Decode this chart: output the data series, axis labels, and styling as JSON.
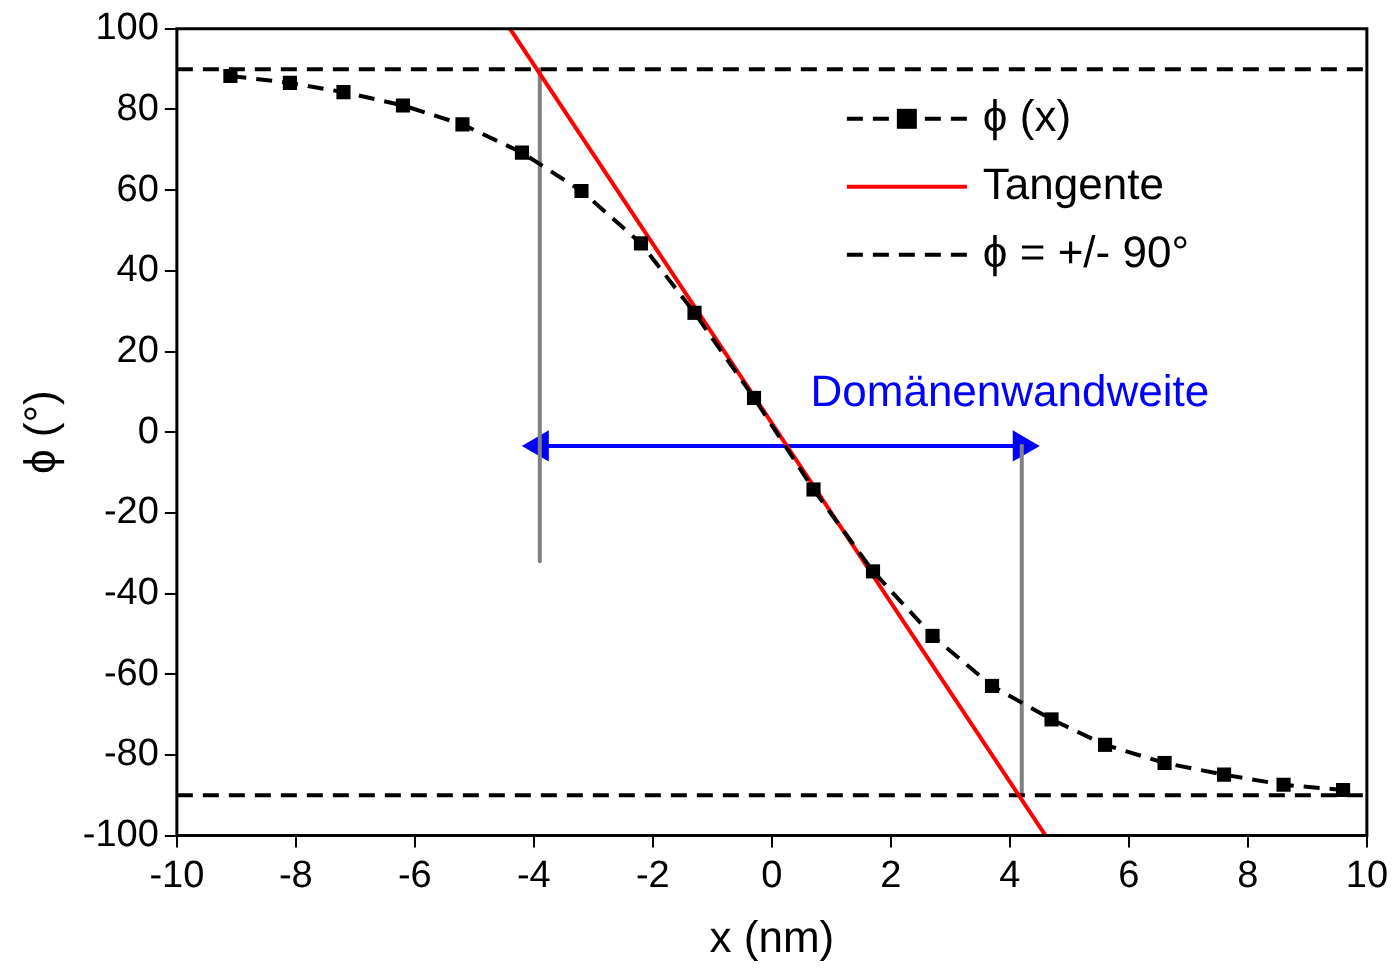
{
  "chart_data": {
    "type": "line",
    "xlabel": "x (nm)",
    "ylabel": "ϕ (°)",
    "xlim": [
      -10,
      10
    ],
    "xticks": [
      -10,
      -8,
      -6,
      -4,
      -2,
      0,
      2,
      4,
      6,
      8,
      10
    ],
    "ylim": [
      -100,
      100
    ],
    "yticks": [
      -100,
      -80,
      -60,
      -40,
      -20,
      0,
      20,
      40,
      60,
      80,
      100
    ],
    "grid": false,
    "legend": "top right",
    "series": [
      {
        "name": "ϕ (x)",
        "color": "#000000",
        "marker": "square",
        "line_style": "dashed",
        "x": [
          -9.1,
          -8.1,
          -7.2,
          -6.2,
          -5.2,
          -4.2,
          -3.2,
          -2.2,
          -1.3,
          -0.3,
          0.7,
          1.7,
          2.7,
          3.7,
          4.7,
          5.6,
          6.6,
          7.6,
          8.6,
          9.6
        ],
        "values": [
          88.3,
          86.6,
          84.3,
          81,
          76.3,
          69.3,
          59.8,
          46.8,
          29.6,
          8.5,
          -14.2,
          -34.5,
          -50.5,
          -62.9,
          -71.2,
          -77.5,
          -82,
          -84.9,
          -87.4,
          -88.7
        ]
      },
      {
        "name": "Tangente",
        "color": "#ff0000",
        "marker": "none",
        "line_style": "solid",
        "x": [
          -4.4,
          4.6
        ],
        "values": [
          100,
          -100
        ]
      },
      {
        "name": "ϕ = +/- 90°",
        "color": "#000000",
        "marker": "none",
        "line_style": "dashed",
        "x": [
          -10,
          10
        ],
        "values": [
          90,
          90
        ]
      },
      {
        "color": "#000000",
        "marker": "none",
        "line_style": "dashed",
        "x": [
          -10,
          10
        ],
        "values": [
          -90,
          -90
        ]
      },
      {
        "color": "#808080",
        "marker": "none",
        "line_style": "solid",
        "x": [
          -3.9,
          -3.9
        ],
        "values": [
          90,
          -32
        ]
      },
      {
        "color": "#808080",
        "marker": "none",
        "line_style": "solid",
        "x": [
          4.2,
          4.2
        ],
        "values": [
          -90,
          -3
        ]
      },
      {
        "color": "#0000ff",
        "marker": "triangle",
        "line_style": "solid",
        "x": [
          -3.9,
          4.2
        ],
        "values": [
          -3.4,
          -3.4
        ]
      }
    ],
    "annotations": [
      "Domänenwandweite"
    ]
  }
}
